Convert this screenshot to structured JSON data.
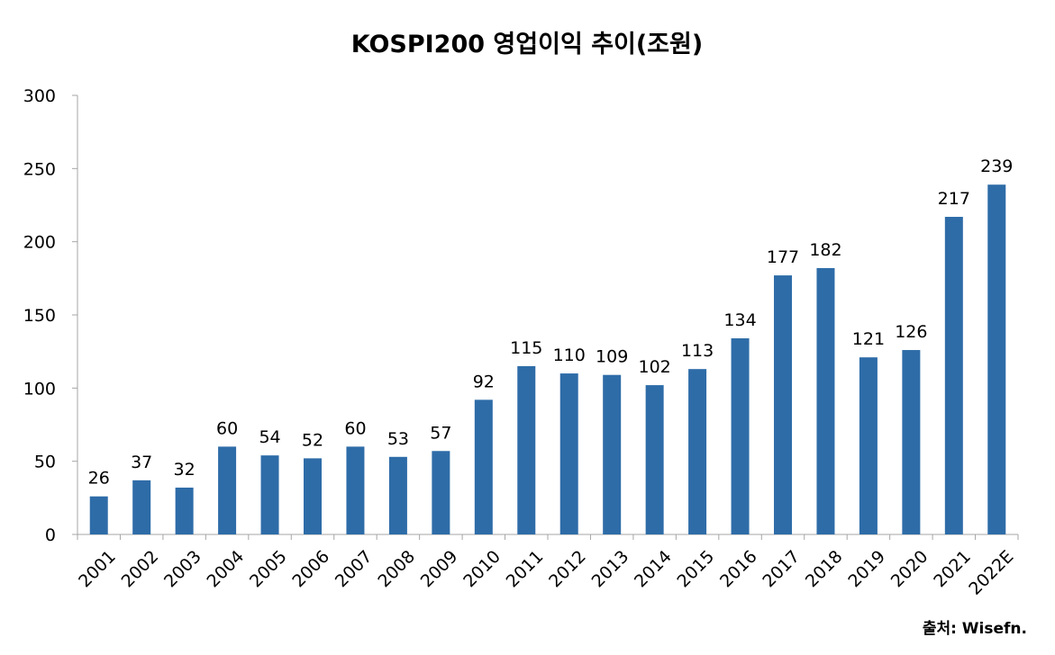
{
  "chart_data": {
    "type": "bar",
    "title": "KOSPI200 영업이익 추이(조원)",
    "categories": [
      "2001",
      "2002",
      "2003",
      "2004",
      "2005",
      "2006",
      "2007",
      "2008",
      "2009",
      "2010",
      "2011",
      "2012",
      "2013",
      "2014",
      "2015",
      "2016",
      "2017",
      "2018",
      "2019",
      "2020",
      "2021",
      "2022E"
    ],
    "values": [
      26,
      37,
      32,
      60,
      54,
      52,
      60,
      53,
      57,
      92,
      115,
      110,
      109,
      102,
      113,
      134,
      177,
      182,
      121,
      126,
      217,
      239
    ],
    "ylim": [
      0,
      300
    ],
    "yticks": [
      0,
      50,
      100,
      150,
      200,
      250,
      300
    ],
    "xlabel": "",
    "ylabel": "",
    "grid": false,
    "data_labels": true,
    "bar_color": "#2e6ca8",
    "source": "출처: Wisefn."
  }
}
